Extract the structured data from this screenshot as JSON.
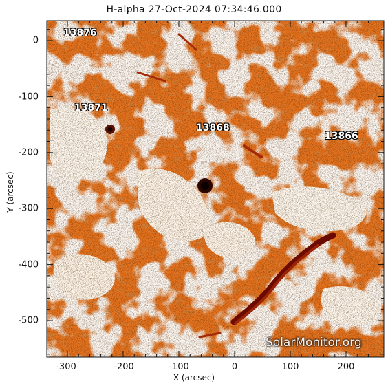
{
  "title": "H-alpha 27-Oct-2024 07:34:46.000",
  "xlabel": "X (arcsec)",
  "ylabel": "Y (arcsec)",
  "xticks": [
    "-300",
    "-200",
    "-100",
    "0",
    "100",
    "200"
  ],
  "yticks": [
    "0",
    "-100",
    "-200",
    "-300",
    "-400",
    "-500"
  ],
  "regions": [
    {
      "id": "13876",
      "label": "13876",
      "x": -300,
      "y": 10
    },
    {
      "id": "13871",
      "label": "13871",
      "x": -280,
      "y": -110
    },
    {
      "id": "13868",
      "label": "13868",
      "x": -65,
      "y": -160
    },
    {
      "id": "13866",
      "label": "13866",
      "x": 165,
      "y": -175
    }
  ],
  "watermark": "SolarMonitor.org",
  "colors": {
    "base": "#e8731f",
    "dark": "#8a1e0a",
    "plage": "#ffffff",
    "filament": "#6b0a00"
  }
}
